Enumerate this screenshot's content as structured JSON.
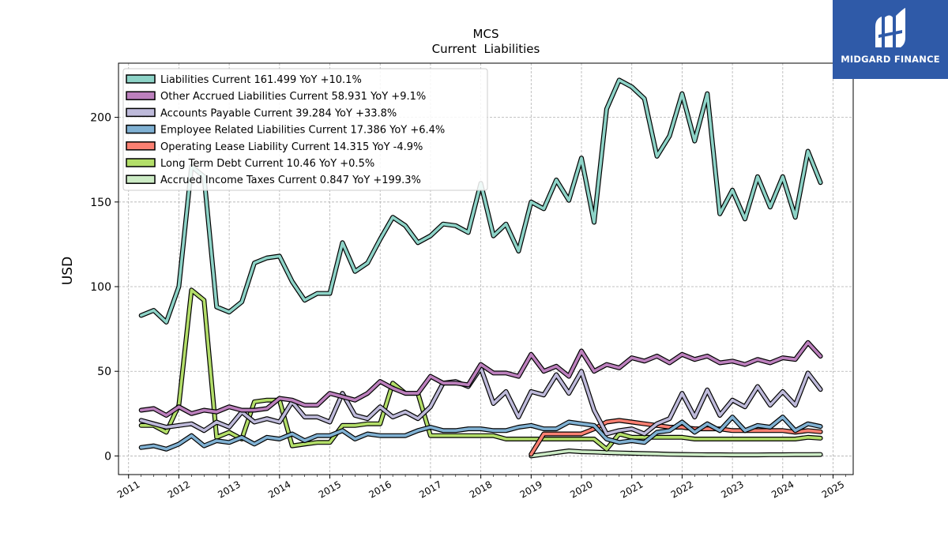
{
  "brand": {
    "name": "MIDGARD FINANCE"
  },
  "chart_data": {
    "type": "line",
    "title": "MCS",
    "subtitle": "Current  Liabilities",
    "xlabel": "",
    "ylabel": "USD",
    "xlim": [
      2010.8,
      2025.4
    ],
    "ylim": [
      -11,
      232
    ],
    "yticks": [
      0,
      50,
      100,
      150,
      200
    ],
    "xticks": [
      "2011",
      "2012",
      "2013",
      "2014",
      "2015",
      "2016",
      "2017",
      "2018",
      "2019",
      "2020",
      "2021",
      "2022",
      "2023",
      "2024",
      "2025"
    ],
    "grid": true,
    "legend_position": "top-left",
    "series": [
      {
        "name": "Liabilities Current  161.499 YoY +10.1%",
        "color": "#8dd3c7",
        "x": [
          2011.25,
          2011.5,
          2011.75,
          2012.0,
          2012.25,
          2012.5,
          2012.75,
          2013.0,
          2013.25,
          2013.5,
          2013.75,
          2014.0,
          2014.25,
          2014.5,
          2014.75,
          2015.0,
          2015.25,
          2015.5,
          2015.75,
          2016.0,
          2016.25,
          2016.5,
          2016.75,
          2017.0,
          2017.25,
          2017.5,
          2017.75,
          2018.0,
          2018.25,
          2018.5,
          2018.75,
          2019.0,
          2019.25,
          2019.5,
          2019.75,
          2020.0,
          2020.25,
          2020.5,
          2020.75,
          2021.0,
          2021.25,
          2021.5,
          2021.75,
          2022.0,
          2022.25,
          2022.5,
          2022.75,
          2023.0,
          2023.25,
          2023.5,
          2023.75,
          2024.0,
          2024.25,
          2024.5,
          2024.75
        ],
        "y": [
          83,
          86,
          79,
          100,
          171,
          165,
          88,
          85,
          91,
          114,
          117,
          118,
          103,
          92,
          96,
          96,
          126,
          109,
          114,
          128,
          141,
          136,
          126,
          130,
          137,
          136,
          132,
          161,
          130,
          137,
          121,
          150,
          146,
          163,
          151,
          176,
          138,
          205,
          222,
          218,
          211,
          177,
          189,
          214,
          186,
          214,
          143,
          157,
          140,
          165,
          147,
          165,
          141,
          180,
          161.5
        ]
      },
      {
        "name": "Other Accrued Liabilities Current  58.931 YoY +9.1%",
        "color": "#bc80bd",
        "x": [
          2011.25,
          2011.5,
          2011.75,
          2012.0,
          2012.25,
          2012.5,
          2012.75,
          2013.0,
          2013.25,
          2013.5,
          2013.75,
          2014.0,
          2014.25,
          2014.5,
          2014.75,
          2015.0,
          2015.25,
          2015.5,
          2015.75,
          2016.0,
          2016.25,
          2016.5,
          2016.75,
          2017.0,
          2017.25,
          2017.5,
          2017.75,
          2018.0,
          2018.25,
          2018.5,
          2018.75,
          2019.0,
          2019.25,
          2019.5,
          2019.75,
          2020.0,
          2020.25,
          2020.5,
          2020.75,
          2021.0,
          2021.25,
          2021.5,
          2021.75,
          2022.0,
          2022.25,
          2022.5,
          2022.75,
          2023.0,
          2023.25,
          2023.5,
          2023.75,
          2024.0,
          2024.25,
          2024.5,
          2024.75
        ],
        "y": [
          27,
          28,
          24,
          29,
          25,
          27,
          26,
          29,
          27,
          27,
          28,
          34,
          33,
          30,
          30,
          37,
          35,
          33,
          37,
          44,
          40,
          37,
          37,
          47,
          43,
          43,
          42,
          54,
          49,
          49,
          47,
          60,
          50,
          53,
          47,
          62,
          50,
          54,
          52,
          58,
          56,
          59,
          55,
          60,
          57,
          59,
          55,
          56,
          54,
          57,
          55,
          58,
          57,
          67,
          58.9
        ]
      },
      {
        "name": "Accounts Payable Current  39.284 YoY +33.8%",
        "color": "#bebada",
        "x": [
          2011.25,
          2011.5,
          2011.75,
          2012.0,
          2012.25,
          2012.5,
          2012.75,
          2013.0,
          2013.25,
          2013.5,
          2013.75,
          2014.0,
          2014.25,
          2014.5,
          2014.75,
          2015.0,
          2015.25,
          2015.5,
          2015.75,
          2016.0,
          2016.25,
          2016.5,
          2016.75,
          2017.0,
          2017.25,
          2017.5,
          2017.75,
          2018.0,
          2018.25,
          2018.5,
          2018.75,
          2019.0,
          2019.25,
          2019.5,
          2019.75,
          2020.0,
          2020.25,
          2020.5,
          2020.75,
          2021.0,
          2021.25,
          2021.5,
          2021.75,
          2022.0,
          2022.25,
          2022.5,
          2022.75,
          2023.0,
          2023.25,
          2023.5,
          2023.75,
          2024.0,
          2024.25,
          2024.5,
          2024.75
        ],
        "y": [
          21,
          19,
          17,
          18,
          19,
          15,
          20,
          17,
          26,
          20,
          22,
          20,
          32,
          23,
          23,
          20,
          37,
          24,
          22,
          29,
          23,
          26,
          22,
          29,
          43,
          44,
          41,
          52,
          31,
          38,
          23,
          38,
          36,
          48,
          37,
          50,
          27,
          13,
          15,
          16,
          13,
          19,
          22,
          37,
          23,
          39,
          24,
          33,
          29,
          41,
          30,
          38,
          30,
          49,
          39.3
        ]
      },
      {
        "name": "Employee Related Liabilities Current  17.386 YoY +6.4%",
        "color": "#80b1d3",
        "x": [
          2011.25,
          2011.5,
          2011.75,
          2012.0,
          2012.25,
          2012.5,
          2012.75,
          2013.0,
          2013.25,
          2013.5,
          2013.75,
          2014.0,
          2014.25,
          2014.5,
          2014.75,
          2015.0,
          2015.25,
          2015.5,
          2015.75,
          2016.0,
          2016.25,
          2016.5,
          2016.75,
          2017.0,
          2017.25,
          2017.5,
          2017.75,
          2018.0,
          2018.25,
          2018.5,
          2018.75,
          2019.0,
          2019.25,
          2019.5,
          2019.75,
          2020.0,
          2020.25,
          2020.5,
          2020.75,
          2021.0,
          2021.25,
          2021.5,
          2021.75,
          2022.0,
          2022.25,
          2022.5,
          2022.75,
          2023.0,
          2023.25,
          2023.5,
          2023.75,
          2024.0,
          2024.25,
          2024.5,
          2024.75
        ],
        "y": [
          5,
          6,
          4,
          7,
          12,
          6,
          9,
          8,
          11,
          7,
          11,
          10,
          13,
          9,
          12,
          12,
          15,
          10,
          13,
          12,
          12,
          12,
          15,
          17,
          15,
          15,
          16,
          16,
          15,
          15,
          17,
          18,
          16,
          16,
          20,
          19,
          18,
          10,
          8,
          9,
          8,
          14,
          15,
          20,
          14,
          19,
          15,
          23,
          15,
          18,
          17,
          23,
          15,
          19,
          17.4
        ]
      },
      {
        "name": "Operating Lease Liability Current  14.315 YoY -4.9%",
        "color": "#fb8072",
        "x": [
          2019.0,
          2019.25,
          2019.5,
          2019.75,
          2020.0,
          2020.25,
          2020.5,
          2020.75,
          2021.0,
          2021.25,
          2021.5,
          2021.75,
          2022.0,
          2022.25,
          2022.5,
          2022.75,
          2023.0,
          2023.25,
          2023.5,
          2023.75,
          2024.0,
          2024.25,
          2024.5,
          2024.75
        ],
        "y": [
          1,
          13,
          13,
          13,
          13,
          16,
          20,
          21,
          20,
          19,
          18,
          17,
          17,
          16,
          16,
          16,
          15,
          15,
          15,
          15,
          15,
          14,
          15,
          14.3
        ]
      },
      {
        "name": "Long Term Debt Current  10.46 YoY +0.5%",
        "color": "#b3de69",
        "x": [
          2011.25,
          2011.5,
          2011.75,
          2012.0,
          2012.25,
          2012.5,
          2012.75,
          2013.0,
          2013.25,
          2013.5,
          2013.75,
          2014.0,
          2014.25,
          2014.5,
          2014.75,
          2015.0,
          2015.25,
          2015.5,
          2015.75,
          2016.0,
          2016.25,
          2016.5,
          2016.75,
          2017.0,
          2017.25,
          2017.5,
          2017.75,
          2018.0,
          2018.25,
          2018.5,
          2018.75,
          2019.0,
          2019.25,
          2019.5,
          2019.75,
          2020.0,
          2020.25,
          2020.5,
          2020.75,
          2021.0,
          2021.25,
          2021.5,
          2021.75,
          2022.0,
          2022.25,
          2022.5,
          2022.75,
          2023.0,
          2023.25,
          2023.5,
          2023.75,
          2024.0,
          2024.25,
          2024.5,
          2024.75
        ],
        "y": [
          18,
          18,
          14,
          30,
          98,
          92,
          11,
          14,
          10,
          32,
          33,
          33,
          6,
          7,
          8,
          8,
          18,
          18,
          19,
          19,
          43,
          37,
          37,
          12,
          12,
          12,
          12,
          12,
          12,
          10,
          10,
          10,
          10,
          10,
          10,
          10,
          10,
          4,
          13,
          11,
          11,
          11,
          11,
          11,
          10,
          10,
          10,
          10,
          10,
          10,
          10,
          10,
          10,
          11,
          10.5
        ]
      },
      {
        "name": "Accrued Income Taxes Current  0.847 YoY +199.3%",
        "color": "#ccebc5",
        "x": [
          2019.0,
          2019.25,
          2019.5,
          2019.75,
          2020.0,
          2020.25,
          2020.5,
          2020.75,
          2021.0,
          2021.25,
          2021.5,
          2021.75,
          2022.0,
          2022.25,
          2022.5,
          2022.75,
          2023.0,
          2023.25,
          2023.5,
          2023.75,
          2024.0,
          2024.25,
          2024.5,
          2024.75
        ],
        "y": [
          0,
          1,
          2,
          3,
          2.5,
          2.3,
          2,
          1.8,
          1.6,
          1.4,
          1.2,
          1,
          0.9,
          0.8,
          0.7,
          0.7,
          0.6,
          0.6,
          0.6,
          0.7,
          0.7,
          0.8,
          0.8,
          0.85
        ]
      }
    ]
  }
}
